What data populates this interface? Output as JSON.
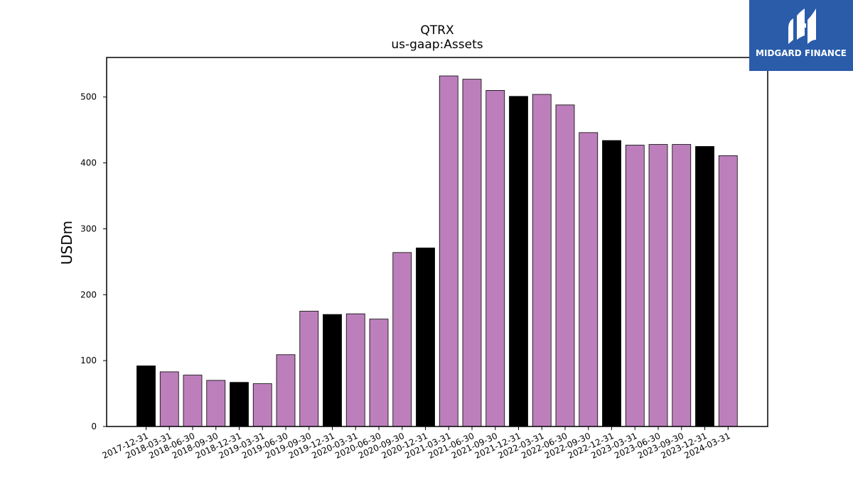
{
  "chart_data": {
    "type": "bar",
    "title": "QTRX",
    "subtitle": "us-gaap:Assets",
    "xlabel": "",
    "ylabel": "USDm",
    "ylim": [
      0,
      560
    ],
    "yticks": [
      0,
      100,
      200,
      300,
      400,
      500
    ],
    "grid": false,
    "categories": [
      "2017-12-31",
      "2018-03-31",
      "2018-06-30",
      "2018-09-30",
      "2018-12-31",
      "2019-03-31",
      "2019-06-30",
      "2019-09-30",
      "2019-12-31",
      "2020-03-31",
      "2020-06-30",
      "2020-09-30",
      "2020-12-31",
      "2021-03-31",
      "2021-06-30",
      "2021-09-30",
      "2021-12-31",
      "2022-03-31",
      "2022-06-30",
      "2022-09-30",
      "2022-12-31",
      "2023-03-31",
      "2023-06-30",
      "2023-09-30",
      "2023-12-31",
      "2024-03-31"
    ],
    "values": [
      92,
      83,
      78,
      70,
      67,
      65,
      109,
      175,
      170,
      171,
      163,
      264,
      271,
      532,
      527,
      510,
      501,
      504,
      488,
      446,
      434,
      427,
      428,
      428,
      425,
      411
    ],
    "colors": {
      "annual": "#000000",
      "quarterly": "#bc7fbc",
      "edge": "#000000"
    },
    "annual_categories": [
      "2017-12-31",
      "2018-12-31",
      "2019-12-31",
      "2020-12-31",
      "2021-12-31",
      "2022-12-31",
      "2023-12-31"
    ]
  },
  "logo": {
    "text": "MIDGARD FINANCE",
    "background": "#2a5caa"
  }
}
